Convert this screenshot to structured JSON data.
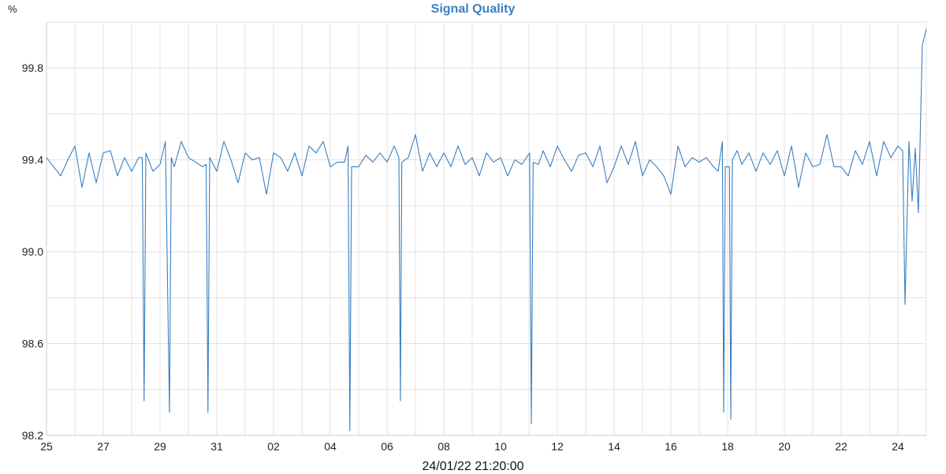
{
  "chart_data": {
    "type": "line",
    "title": "Signal Quality",
    "ylabel": "%",
    "xlabel": "24/01/22 21:20:00",
    "xlim": [
      "2021-12-25T00:00",
      "2022-01-25T00:00"
    ],
    "ylim": [
      98.2,
      100.0
    ],
    "grid": true,
    "line_color": "#3a7fc0",
    "title_color": "#3a7fc0",
    "x_tick_labels": [
      "25",
      "27",
      "29",
      "31",
      "02",
      "04",
      "06",
      "08",
      "10",
      "12",
      "14",
      "16",
      "18",
      "20",
      "22",
      "24"
    ],
    "y_tick_labels": [
      "98.2",
      "98.6",
      "99.0",
      "99.4",
      "99.8"
    ],
    "points": [
      [
        "2021-12-25T00:00",
        99.41
      ],
      [
        "2021-12-25T06:00",
        99.37
      ],
      [
        "2021-12-25T12:00",
        99.33
      ],
      [
        "2021-12-25T18:00",
        99.4
      ],
      [
        "2021-12-26T00:00",
        99.46
      ],
      [
        "2021-12-26T06:00",
        99.28
      ],
      [
        "2021-12-26T12:00",
        99.43
      ],
      [
        "2021-12-26T18:00",
        99.3
      ],
      [
        "2021-12-27T00:00",
        99.43
      ],
      [
        "2021-12-27T06:00",
        99.44
      ],
      [
        "2021-12-27T12:00",
        99.33
      ],
      [
        "2021-12-27T18:00",
        99.41
      ],
      [
        "2021-12-28T00:00",
        99.35
      ],
      [
        "2021-12-28T06:00",
        99.41
      ],
      [
        "2021-12-28T09:00",
        99.41
      ],
      [
        "2021-12-28T10:30",
        98.35
      ],
      [
        "2021-12-28T12:00",
        99.43
      ],
      [
        "2021-12-28T18:00",
        99.35
      ],
      [
        "2021-12-29T00:00",
        99.38
      ],
      [
        "2021-12-29T04:30",
        99.48
      ],
      [
        "2021-12-29T08:00",
        98.3
      ],
      [
        "2021-12-29T09:30",
        99.41
      ],
      [
        "2021-12-29T12:00",
        99.37
      ],
      [
        "2021-12-29T18:00",
        99.48
      ],
      [
        "2021-12-30T00:00",
        99.41
      ],
      [
        "2021-12-30T06:00",
        99.39
      ],
      [
        "2021-12-30T12:00",
        99.37
      ],
      [
        "2021-12-30T15:00",
        99.38
      ],
      [
        "2021-12-30T16:30",
        98.3
      ],
      [
        "2021-12-30T18:00",
        99.41
      ],
      [
        "2021-12-31T00:00",
        99.35
      ],
      [
        "2021-12-31T06:00",
        99.48
      ],
      [
        "2021-12-31T12:00",
        99.4
      ],
      [
        "2021-12-31T18:00",
        99.3
      ],
      [
        "2022-01-01T00:00",
        99.43
      ],
      [
        "2022-01-01T06:00",
        99.4
      ],
      [
        "2022-01-01T12:00",
        99.41
      ],
      [
        "2022-01-01T18:00",
        99.25
      ],
      [
        "2022-01-02T00:00",
        99.43
      ],
      [
        "2022-01-02T06:00",
        99.41
      ],
      [
        "2022-01-02T12:00",
        99.35
      ],
      [
        "2022-01-02T18:00",
        99.43
      ],
      [
        "2022-01-03T00:00",
        99.33
      ],
      [
        "2022-01-03T06:00",
        99.46
      ],
      [
        "2022-01-03T12:00",
        99.43
      ],
      [
        "2022-01-03T18:00",
        99.48
      ],
      [
        "2022-01-04T00:00",
        99.37
      ],
      [
        "2022-01-04T06:00",
        99.39
      ],
      [
        "2022-01-04T12:00",
        99.39
      ],
      [
        "2022-01-04T15:00",
        99.46
      ],
      [
        "2022-01-04T16:30",
        98.22
      ],
      [
        "2022-01-04T18:00",
        99.37
      ],
      [
        "2022-01-05T00:00",
        99.37
      ],
      [
        "2022-01-05T06:00",
        99.42
      ],
      [
        "2022-01-05T12:00",
        99.39
      ],
      [
        "2022-01-05T18:00",
        99.43
      ],
      [
        "2022-01-06T00:00",
        99.39
      ],
      [
        "2022-01-06T06:00",
        99.46
      ],
      [
        "2022-01-06T10:00",
        99.41
      ],
      [
        "2022-01-06T11:15",
        98.35
      ],
      [
        "2022-01-06T12:30",
        99.39
      ],
      [
        "2022-01-06T18:00",
        99.41
      ],
      [
        "2022-01-07T00:00",
        99.51
      ],
      [
        "2022-01-07T06:00",
        99.35
      ],
      [
        "2022-01-07T12:00",
        99.43
      ],
      [
        "2022-01-07T18:00",
        99.37
      ],
      [
        "2022-01-08T00:00",
        99.43
      ],
      [
        "2022-01-08T06:00",
        99.37
      ],
      [
        "2022-01-08T12:00",
        99.46
      ],
      [
        "2022-01-08T18:00",
        99.38
      ],
      [
        "2022-01-09T00:00",
        99.41
      ],
      [
        "2022-01-09T06:00",
        99.33
      ],
      [
        "2022-01-09T12:00",
        99.43
      ],
      [
        "2022-01-09T18:00",
        99.39
      ],
      [
        "2022-01-10T00:00",
        99.41
      ],
      [
        "2022-01-10T06:00",
        99.33
      ],
      [
        "2022-01-10T12:00",
        99.4
      ],
      [
        "2022-01-10T18:00",
        99.38
      ],
      [
        "2022-01-11T00:30",
        99.43
      ],
      [
        "2022-01-11T02:00",
        98.25
      ],
      [
        "2022-01-11T03:30",
        99.39
      ],
      [
        "2022-01-11T08:00",
        99.38
      ],
      [
        "2022-01-11T12:00",
        99.44
      ],
      [
        "2022-01-11T18:00",
        99.37
      ],
      [
        "2022-01-12T00:00",
        99.46
      ],
      [
        "2022-01-12T06:00",
        99.4
      ],
      [
        "2022-01-12T12:00",
        99.35
      ],
      [
        "2022-01-12T18:00",
        99.42
      ],
      [
        "2022-01-13T00:00",
        99.43
      ],
      [
        "2022-01-13T06:00",
        99.37
      ],
      [
        "2022-01-13T12:00",
        99.46
      ],
      [
        "2022-01-13T18:00",
        99.3
      ],
      [
        "2022-01-14T00:00",
        99.37
      ],
      [
        "2022-01-14T06:00",
        99.46
      ],
      [
        "2022-01-14T12:00",
        99.38
      ],
      [
        "2022-01-14T18:00",
        99.48
      ],
      [
        "2022-01-15T00:00",
        99.33
      ],
      [
        "2022-01-15T06:00",
        99.4
      ],
      [
        "2022-01-15T12:00",
        99.37
      ],
      [
        "2022-01-15T18:00",
        99.33
      ],
      [
        "2022-01-16T00:00",
        99.25
      ],
      [
        "2022-01-16T06:00",
        99.46
      ],
      [
        "2022-01-16T12:00",
        99.37
      ],
      [
        "2022-01-16T18:00",
        99.41
      ],
      [
        "2022-01-17T00:00",
        99.39
      ],
      [
        "2022-01-17T06:00",
        99.41
      ],
      [
        "2022-01-17T12:00",
        99.37
      ],
      [
        "2022-01-17T16:00",
        99.35
      ],
      [
        "2022-01-17T19:30",
        99.48
      ],
      [
        "2022-01-17T20:40",
        98.3
      ],
      [
        "2022-01-17T22:00",
        99.37
      ],
      [
        "2022-01-18T01:30",
        99.37
      ],
      [
        "2022-01-18T02:40",
        98.27
      ],
      [
        "2022-01-18T04:00",
        99.4
      ],
      [
        "2022-01-18T08:00",
        99.44
      ],
      [
        "2022-01-18T12:00",
        99.38
      ],
      [
        "2022-01-18T18:00",
        99.43
      ],
      [
        "2022-01-19T00:00",
        99.35
      ],
      [
        "2022-01-19T06:00",
        99.43
      ],
      [
        "2022-01-19T12:00",
        99.38
      ],
      [
        "2022-01-19T18:00",
        99.44
      ],
      [
        "2022-01-20T00:00",
        99.33
      ],
      [
        "2022-01-20T06:00",
        99.46
      ],
      [
        "2022-01-20T12:00",
        99.28
      ],
      [
        "2022-01-20T18:00",
        99.43
      ],
      [
        "2022-01-21T00:00",
        99.37
      ],
      [
        "2022-01-21T06:00",
        99.38
      ],
      [
        "2022-01-21T12:00",
        99.51
      ],
      [
        "2022-01-21T18:00",
        99.37
      ],
      [
        "2022-01-22T00:00",
        99.37
      ],
      [
        "2022-01-22T06:00",
        99.33
      ],
      [
        "2022-01-22T12:00",
        99.44
      ],
      [
        "2022-01-22T18:00",
        99.38
      ],
      [
        "2022-01-23T00:00",
        99.48
      ],
      [
        "2022-01-23T06:00",
        99.33
      ],
      [
        "2022-01-23T12:00",
        99.48
      ],
      [
        "2022-01-23T18:00",
        99.41
      ],
      [
        "2022-01-24T00:00",
        99.46
      ],
      [
        "2022-01-24T04:00",
        99.44
      ],
      [
        "2022-01-24T06:00",
        98.77
      ],
      [
        "2022-01-24T09:20",
        99.48
      ],
      [
        "2022-01-24T12:00",
        99.22
      ],
      [
        "2022-01-24T14:40",
        99.45
      ],
      [
        "2022-01-24T17:20",
        99.17
      ],
      [
        "2022-01-24T20:40",
        99.9
      ],
      [
        "2022-01-25T00:00",
        99.97
      ]
    ]
  }
}
